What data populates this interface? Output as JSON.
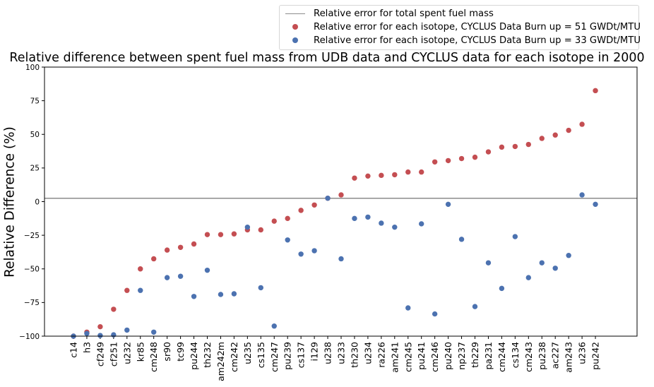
{
  "chart_data": {
    "type": "scatter",
    "title": "Relative difference between spent fuel mass from UDB data and CYCLUS data for each isotope in 2000",
    "xlabel": "",
    "ylabel": "Relative Difference (%)",
    "ylim": [
      -100,
      100
    ],
    "yticks": [
      "100",
      "75",
      "50",
      "25",
      "0",
      "−25",
      "−50",
      "−75",
      "−100"
    ],
    "grid": false,
    "legend_position": "top-right",
    "categories": [
      "c14",
      "h3",
      "cf249",
      "cf251",
      "u232",
      "kr85",
      "cm248",
      "sr90",
      "tc99",
      "pu244",
      "th232",
      "am242m",
      "cm242",
      "u235",
      "cs135",
      "cm247",
      "pu239",
      "cs137",
      "i129",
      "u238",
      "u233",
      "th230",
      "u234",
      "ra226",
      "am241",
      "cm245",
      "pu241",
      "cm246",
      "pu240",
      "np237",
      "th229",
      "pa231",
      "cm244",
      "cs134",
      "cm243",
      "pu238",
      "ac227",
      "am243",
      "u236",
      "pu242"
    ],
    "reference_line": {
      "name": "Relative error for total spent fuel mass",
      "value": 2.5,
      "color": "#8c8c8c"
    },
    "series": [
      {
        "name": "Relative error for each isotope, CYCLUS Data Burn up = 51 GWDt/MTU",
        "color": "#c44e52",
        "values": [
          -100,
          -97,
          -93,
          -80,
          -66,
          -50,
          -42.5,
          -36,
          -34,
          -31.5,
          -24.5,
          -24.5,
          -24,
          -21,
          -21,
          -14.5,
          -12.5,
          -6.5,
          -2.5,
          2.5,
          5,
          17.5,
          19,
          19.5,
          20,
          22,
          22,
          29.5,
          30.5,
          32,
          33,
          37,
          40.5,
          41,
          42.5,
          47,
          49.5,
          53,
          57.5,
          82.5
        ]
      },
      {
        "name": "Relative error for each isotope, CYCLUS Data Burn up = 33 GWDt/MTU",
        "color": "#4c72b0",
        "values": [
          -100,
          -98,
          -99.5,
          -99,
          -95.5,
          -66,
          -97,
          -56.5,
          -55.5,
          -70.5,
          -51,
          -69,
          -68.5,
          -19,
          -64,
          -92.5,
          -28.5,
          -39,
          -36.5,
          2.5,
          -42.5,
          -12.5,
          -11.5,
          -16,
          -19,
          -79,
          -16.5,
          -83.5,
          -2,
          -28,
          -78,
          -45.5,
          -64.5,
          -26,
          -56.5,
          -45.5,
          -49.5,
          -40,
          5,
          -2
        ]
      }
    ]
  }
}
